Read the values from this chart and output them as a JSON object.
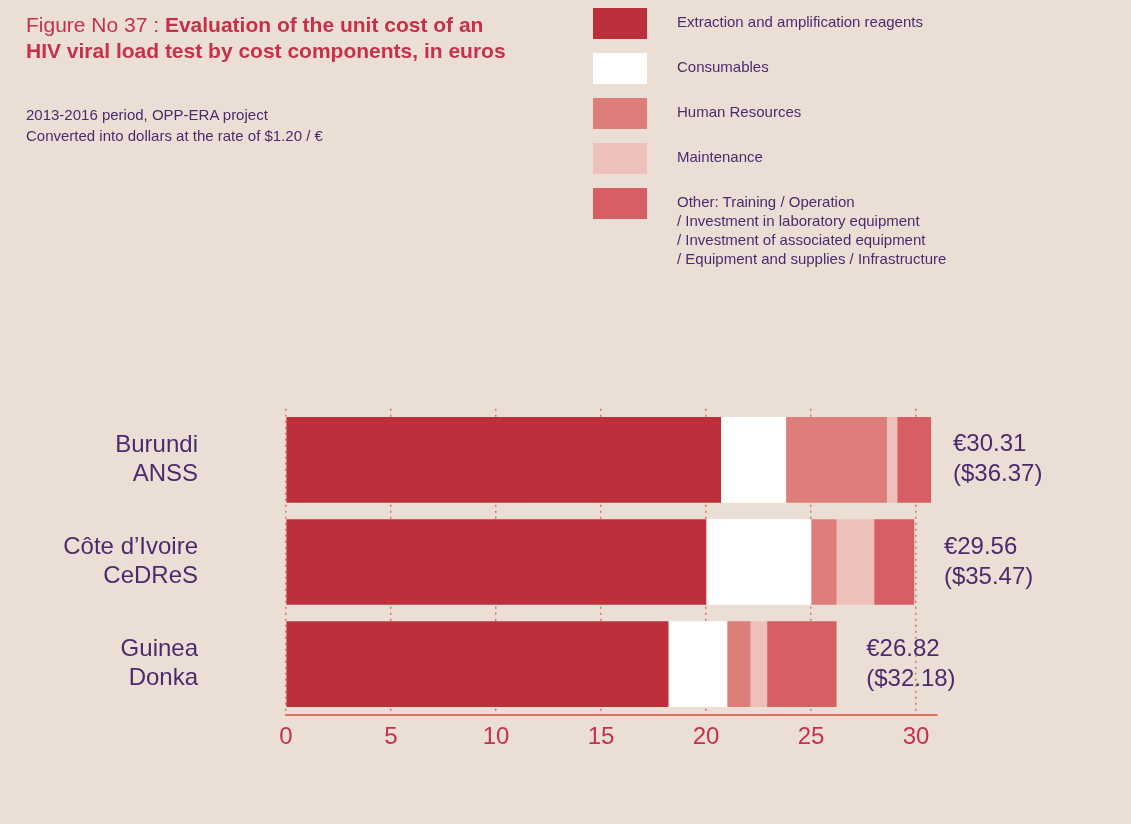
{
  "chart_data": {
    "type": "bar",
    "orientation": "horizontal",
    "stacked": true,
    "title": "Figure No 37 : Evaluation of the unit cost of an HIV viral load test by cost components, in euros",
    "subtitle": "2013-2016 period, OPP-ERA project\nConverted into dollars at the rate of $1.20 / €",
    "categories": [
      "Burundi\nANSS",
      "Côte d’Ivoire\nCeDReS",
      "Guinea\nDonka"
    ],
    "series": [
      {
        "name": "Extraction and amplification reagents",
        "color": "#be2f3c",
        "values": [
          20.7,
          20.0,
          18.2
        ]
      },
      {
        "name": "Consumables",
        "color": "#ffffff",
        "values": [
          3.1,
          5.0,
          2.8
        ]
      },
      {
        "name": "Human Resources",
        "color": "#dd7e7b",
        "values": [
          4.8,
          1.2,
          1.1
        ]
      },
      {
        "name": "Maintenance",
        "color": "#edc0bb",
        "values": [
          0.5,
          1.8,
          0.8
        ]
      },
      {
        "name": "Other: Training / Operation\n/ Investment in laboratory equipment\n/ Investment of associated equipment\n/ Equipment and supplies / Infrastructure",
        "color": "#d65e64",
        "values": [
          1.6,
          1.9,
          3.3
        ]
      }
    ],
    "totals": [
      "€30.31 ($36.37)",
      "€29.56 ($35.47)",
      "€26.82 ($32.18)"
    ],
    "xlim": [
      0,
      31
    ],
    "xticks": [
      0,
      5,
      10,
      15,
      20,
      25,
      30
    ],
    "grid": "x",
    "legend": "top right"
  }
}
